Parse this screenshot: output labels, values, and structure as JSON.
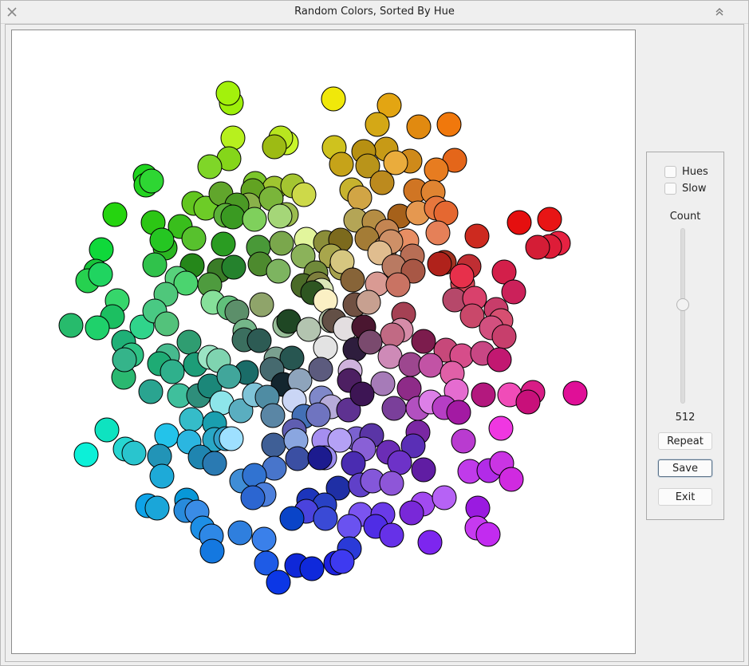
{
  "window": {
    "title": "Random Colors, Sorted By Hue"
  },
  "controls": {
    "hues_label": "Hues",
    "slow_label": "Slow",
    "hues_checked": false,
    "slow_checked": false,
    "count_label": "Count",
    "count_value": "512",
    "repeat_label": "Repeat",
    "save_label": "Save",
    "exit_label": "Exit"
  },
  "circles": [
    [
      "#9ef00a",
      289,
      128
    ],
    [
      "#a3f10c",
      285,
      116
    ],
    [
      "#f0e80a",
      417,
      123
    ],
    [
      "#e3a512",
      487,
      131
    ],
    [
      "#d4a816",
      472,
      155
    ],
    [
      "#e18a10",
      524,
      158
    ],
    [
      "#f0780c",
      562,
      155
    ],
    [
      "#b7f01e",
      291,
      172
    ],
    [
      "#c8f52b",
      358,
      178
    ],
    [
      "#b8e61f",
      351,
      172
    ],
    [
      "#9dbb14",
      343,
      183
    ],
    [
      "#cfc21e",
      418,
      184
    ],
    [
      "#c79a16",
      483,
      186
    ],
    [
      "#b79012",
      455,
      189
    ],
    [
      "#cf8a1a",
      513,
      201
    ],
    [
      "#e4661a",
      569,
      200
    ],
    [
      "#85d61a",
      286,
      198
    ],
    [
      "#7fd628",
      262,
      208
    ],
    [
      "#c6a319",
      427,
      205
    ],
    [
      "#b9941a",
      460,
      207
    ],
    [
      "#eaac3c",
      495,
      203
    ],
    [
      "#e77c20",
      546,
      212
    ],
    [
      "#1fd41f",
      181,
      220
    ],
    [
      "#22d31f",
      182,
      231
    ],
    [
      "#2ed633",
      189,
      226
    ],
    [
      "#7bc62b",
      319,
      229
    ],
    [
      "#9fc530",
      343,
      235
    ],
    [
      "#a4c531",
      366,
      232
    ],
    [
      "#cdd949",
      380,
      243
    ],
    [
      "#c7b32e",
      440,
      237
    ],
    [
      "#bc8a1e",
      478,
      228
    ],
    [
      "#d07523",
      520,
      238
    ],
    [
      "#e08431",
      542,
      240
    ],
    [
      "#25d40f",
      143,
      268
    ],
    [
      "#62c61f",
      242,
      254
    ],
    [
      "#6dcc27",
      257,
      260
    ],
    [
      "#61a62c",
      276,
      242
    ],
    [
      "#62a322",
      316,
      238
    ],
    [
      "#8ab14a",
      311,
      256
    ],
    [
      "#4b9a25",
      296,
      256
    ],
    [
      "#7ab53a",
      339,
      248
    ],
    [
      "#9bbc4e",
      358,
      268
    ],
    [
      "#d1a545",
      450,
      247
    ],
    [
      "#a6611a",
      500,
      270
    ],
    [
      "#e59850",
      523,
      266
    ],
    [
      "#e7773d",
      546,
      260
    ],
    [
      "#e56831",
      558,
      266
    ],
    [
      "#e50f0f",
      650,
      278
    ],
    [
      "#e81515",
      688,
      274
    ],
    [
      "#2cc614",
      191,
      278
    ],
    [
      "#39be1c",
      225,
      283
    ],
    [
      "#57c12d",
      242,
      298
    ],
    [
      "#5bb139",
      282,
      269
    ],
    [
      "#3a9a22",
      291,
      271
    ],
    [
      "#7fd05c",
      318,
      274
    ],
    [
      "#a5d678",
      350,
      270
    ],
    [
      "#b4a556",
      445,
      275
    ],
    [
      "#b58d43",
      468,
      277
    ],
    [
      "#c48552",
      484,
      289
    ],
    [
      "#e88e63",
      509,
      301
    ],
    [
      "#e58058",
      548,
      291
    ],
    [
      "#cd2a1f",
      597,
      295
    ],
    [
      "#e62242",
      699,
      304
    ],
    [
      "#de1c38",
      688,
      308
    ],
    [
      "#d41d36",
      673,
      309
    ],
    [
      "#0fd83a",
      126,
      312
    ],
    [
      "#17c43a",
      119,
      339
    ],
    [
      "#26d14f",
      109,
      351
    ],
    [
      "#2ab621",
      206,
      310
    ],
    [
      "#25c622",
      202,
      300
    ],
    [
      "#2a9c22",
      279,
      305
    ],
    [
      "#499938",
      323,
      309
    ],
    [
      "#7aa74c",
      352,
      304
    ],
    [
      "#e2f59c",
      383,
      299
    ],
    [
      "#8b8e39",
      407,
      303
    ],
    [
      "#7c6a1d",
      426,
      300
    ],
    [
      "#a47c36",
      459,
      298
    ],
    [
      "#c38759",
      482,
      310
    ],
    [
      "#ce9067",
      489,
      302
    ],
    [
      "#b86e55",
      516,
      320
    ],
    [
      "#a13322",
      556,
      328
    ],
    [
      "#b0221b",
      550,
      330
    ],
    [
      "#c02e33",
      587,
      333
    ],
    [
      "#d31f4a",
      631,
      340
    ],
    [
      "#20d460",
      125,
      343
    ],
    [
      "#30c24b",
      193,
      331
    ],
    [
      "#25871a",
      240,
      332
    ],
    [
      "#3a7c27",
      274,
      338
    ],
    [
      "#25822d",
      292,
      334
    ],
    [
      "#4d8a2e",
      325,
      330
    ],
    [
      "#8bb25a",
      379,
      320
    ],
    [
      "#a8a64c",
      414,
      320
    ],
    [
      "#a6a14d",
      427,
      335
    ],
    [
      "#d6c780",
      428,
      327
    ],
    [
      "#e0bd8f",
      475,
      316
    ],
    [
      "#b97a62",
      493,
      333
    ],
    [
      "#a85745",
      517,
      339
    ],
    [
      "#d64857",
      579,
      355
    ],
    [
      "#e7304b",
      578,
      345
    ],
    [
      "#cb215a",
      643,
      365
    ],
    [
      "#36d66b",
      146,
      376
    ],
    [
      "#1cbf61",
      140,
      396
    ],
    [
      "#27bb6c",
      88,
      407
    ],
    [
      "#1fd16b",
      121,
      410
    ],
    [
      "#58d27c",
      221,
      348
    ],
    [
      "#4bd46f",
      232,
      354
    ],
    [
      "#4fc77b",
      207,
      368
    ],
    [
      "#4e9b3e",
      262,
      356
    ],
    [
      "#7db460",
      348,
      339
    ],
    [
      "#708a3a",
      395,
      341
    ],
    [
      "#4b6b28",
      379,
      357
    ],
    [
      "#7e7e3d",
      398,
      355
    ],
    [
      "#876438",
      441,
      350
    ],
    [
      "#d99a93",
      472,
      355
    ],
    [
      "#c97363",
      498,
      356
    ],
    [
      "#b6486a",
      569,
      375
    ],
    [
      "#d9416c",
      594,
      373
    ],
    [
      "#c83d6a",
      621,
      387
    ],
    [
      "#d74f71",
      627,
      401
    ],
    [
      "#30d48b",
      177,
      409
    ],
    [
      "#49c983",
      193,
      389
    ],
    [
      "#53c27b",
      208,
      405
    ],
    [
      "#86e09a",
      266,
      378
    ],
    [
      "#61c07b",
      286,
      385
    ],
    [
      "#8fa46a",
      327,
      381
    ],
    [
      "#dbe7b8",
      402,
      363
    ],
    [
      "#2e5621",
      391,
      366
    ],
    [
      "#fbf0c4",
      407,
      376
    ],
    [
      "#715142",
      444,
      381
    ],
    [
      "#c7a090",
      461,
      378
    ],
    [
      "#a54154",
      505,
      393
    ],
    [
      "#c9486a",
      591,
      395
    ],
    [
      "#d2507f",
      615,
      410
    ],
    [
      "#c73f6c",
      631,
      421
    ],
    [
      "#1fb077",
      154,
      428
    ],
    [
      "#2ec284",
      164,
      444
    ],
    [
      "#2ab870",
      154,
      472
    ],
    [
      "#35b48a",
      155,
      450
    ],
    [
      "#47ba8e",
      209,
      445
    ],
    [
      "#2f9d71",
      236,
      428
    ],
    [
      "#5c8f6a",
      296,
      390
    ],
    [
      "#74b689",
      306,
      414
    ],
    [
      "#98be98",
      356,
      407
    ],
    [
      "#1f4724",
      361,
      402
    ],
    [
      "#b3c4b0",
      386,
      412
    ],
    [
      "#a8b79c",
      414,
      401
    ],
    [
      "#635046",
      418,
      401
    ],
    [
      "#e3dee0",
      432,
      411
    ],
    [
      "#4a1630",
      455,
      409
    ],
    [
      "#d68ca8",
      502,
      413
    ],
    [
      "#c16a84",
      491,
      419
    ],
    [
      "#7c1c4d",
      530,
      427
    ],
    [
      "#c7487a",
      558,
      438
    ],
    [
      "#d64d8a",
      578,
      445
    ],
    [
      "#c84784",
      604,
      442
    ],
    [
      "#1eab74",
      199,
      455
    ],
    [
      "#2fb08c",
      215,
      465
    ],
    [
      "#1d9d78",
      244,
      456
    ],
    [
      "#9be4c4",
      262,
      447
    ],
    [
      "#7fd4b0",
      273,
      451
    ],
    [
      "#3b6f5f",
      305,
      425
    ],
    [
      "#2d5b54",
      324,
      426
    ],
    [
      "#7aa08f",
      345,
      449
    ],
    [
      "#275651",
      365,
      448
    ],
    [
      "#e3e3e3",
      407,
      435
    ],
    [
      "#2e1d3d",
      444,
      437
    ],
    [
      "#7a4a6e",
      463,
      428
    ],
    [
      "#ce8ab7",
      488,
      446
    ],
    [
      "#9d478f",
      514,
      456
    ],
    [
      "#c253a5",
      539,
      457
    ],
    [
      "#e060a7",
      566,
      467
    ],
    [
      "#c21871",
      625,
      450
    ],
    [
      "#2aa490",
      188,
      490
    ],
    [
      "#3fbf9c",
      224,
      495
    ],
    [
      "#2e8e7b",
      248,
      495
    ],
    [
      "#1b8779",
      262,
      483
    ],
    [
      "#1a6c68",
      308,
      466
    ],
    [
      "#41a69b",
      286,
      471
    ],
    [
      "#466a6f",
      340,
      462
    ],
    [
      "#13262f",
      354,
      481
    ],
    [
      "#8ea4bc",
      375,
      476
    ],
    [
      "#5c5b7e",
      401,
      462
    ],
    [
      "#cfb2dc",
      438,
      464
    ],
    [
      "#4d1f62",
      437,
      476
    ],
    [
      "#a67bb8",
      479,
      480
    ],
    [
      "#8e2b88",
      512,
      486
    ],
    [
      "#e56cd0",
      571,
      489
    ],
    [
      "#b3187e",
      605,
      494
    ],
    [
      "#f04cb8",
      638,
      494
    ],
    [
      "#d81d86",
      667,
      491
    ],
    [
      "#e00f97",
      720,
      492
    ],
    [
      "#c8107a",
      661,
      503
    ],
    [
      "#8de5ea",
      277,
      504
    ],
    [
      "#5aaec0",
      301,
      514
    ],
    [
      "#7fc4d8",
      318,
      494
    ],
    [
      "#4f8ca3",
      334,
      497
    ],
    [
      "#cad6f5",
      368,
      501
    ],
    [
      "#7f88c9",
      402,
      498
    ],
    [
      "#b6abd9",
      414,
      509
    ],
    [
      "#5e3291",
      436,
      513
    ],
    [
      "#3d1554",
      453,
      493
    ],
    [
      "#7a3f9a",
      493,
      511
    ],
    [
      "#b250c0",
      523,
      511
    ],
    [
      "#dc7fe7",
      539,
      503
    ],
    [
      "#b63ec5",
      556,
      510
    ],
    [
      "#a31aa3",
      574,
      516
    ],
    [
      "#ef37e1",
      627,
      536
    ],
    [
      "#0ee3c0",
      133,
      538
    ],
    [
      "#0cf0d8",
      107,
      569
    ],
    [
      "#27d6d2",
      156,
      562
    ],
    [
      "#29c5ce",
      167,
      567
    ],
    [
      "#35bcc9",
      239,
      525
    ],
    [
      "#1a9faf",
      268,
      530
    ],
    [
      "#5a86a5",
      341,
      520
    ],
    [
      "#4370b6",
      380,
      521
    ],
    [
      "#6f74c0",
      398,
      519
    ],
    [
      "#5f5eb1",
      368,
      539
    ],
    [
      "#7b62d0",
      446,
      549
    ],
    [
      "#5a35a6",
      465,
      545
    ],
    [
      "#7a27a3",
      523,
      541
    ],
    [
      "#b93bd0",
      580,
      552
    ],
    [
      "#23c3ea",
      208,
      545
    ],
    [
      "#2bb6e0",
      236,
      553
    ],
    [
      "#29a7c6",
      268,
      550
    ],
    [
      "#33a0c9",
      282,
      549
    ],
    [
      "#9ee0ff",
      289,
      549
    ],
    [
      "#3f5f96",
      342,
      557
    ],
    [
      "#8aa6e0",
      370,
      551
    ],
    [
      "#a58ef0",
      405,
      551
    ],
    [
      "#b4a1f5",
      425,
      551
    ],
    [
      "#8960d6",
      455,
      562
    ],
    [
      "#6b2db6",
      486,
      566
    ],
    [
      "#5a2fb6",
      517,
      558
    ],
    [
      "#2294b7",
      199,
      571
    ],
    [
      "#1f85b0",
      250,
      572
    ],
    [
      "#2a7ab2",
      268,
      580
    ],
    [
      "#4875cb",
      343,
      586
    ],
    [
      "#3b4fa3",
      372,
      574
    ],
    [
      "#9b8cf0",
      406,
      573
    ],
    [
      "#1c1b8f",
      400,
      573
    ],
    [
      "#4a2cb1",
      442,
      580
    ],
    [
      "#6d32c8",
      500,
      579
    ],
    [
      "#601da3",
      530,
      588
    ],
    [
      "#c03bea",
      588,
      590
    ],
    [
      "#b22be8",
      612,
      589
    ],
    [
      "#ca35e3",
      628,
      580
    ],
    [
      "#d02ae0",
      640,
      600
    ],
    [
      "#1eaad8",
      202,
      596
    ],
    [
      "#3f8dd6",
      302,
      602
    ],
    [
      "#3173d1",
      318,
      595
    ],
    [
      "#4c7fdc",
      330,
      619
    ],
    [
      "#1f2fa5",
      423,
      611
    ],
    [
      "#6040c9",
      451,
      607
    ],
    [
      "#8457da",
      466,
      602
    ],
    [
      "#8e56d8",
      490,
      605
    ],
    [
      "#0898d8",
      233,
      626
    ],
    [
      "#0ea3e8",
      184,
      633
    ],
    [
      "#1aa6d9",
      196,
      636
    ],
    [
      "#288bdc",
      232,
      639
    ],
    [
      "#3a8ce6",
      246,
      641
    ],
    [
      "#2c66d1",
      316,
      623
    ],
    [
      "#1c35bb",
      386,
      626
    ],
    [
      "#2841c4",
      406,
      632
    ],
    [
      "#4a43dd",
      383,
      640
    ],
    [
      "#7b54f0",
      451,
      644
    ],
    [
      "#6a3be8",
      479,
      644
    ],
    [
      "#a24af0",
      529,
      631
    ],
    [
      "#b662f5",
      556,
      623
    ],
    [
      "#9a1be0",
      598,
      636
    ],
    [
      "#0a44c8",
      365,
      649
    ],
    [
      "#3a4ad6",
      407,
      649
    ],
    [
      "#6a52f0",
      437,
      659
    ],
    [
      "#4f2de5",
      470,
      659
    ],
    [
      "#7928d8",
      515,
      642
    ],
    [
      "#c63af0",
      597,
      661
    ],
    [
      "#c22bf0",
      611,
      669
    ],
    [
      "#1d8fe6",
      253,
      661
    ],
    [
      "#2e88e6",
      264,
      671
    ],
    [
      "#2f7fde",
      300,
      667
    ],
    [
      "#3a80ea",
      330,
      675
    ],
    [
      "#2a3ad8",
      437,
      687
    ],
    [
      "#6631e8",
      490,
      670
    ],
    [
      "#7d26ef",
      538,
      679
    ],
    [
      "#1478e0",
      265,
      690
    ],
    [
      "#1e5be6",
      333,
      705
    ],
    [
      "#0f28d8",
      371,
      708
    ],
    [
      "#0f29db",
      390,
      712
    ],
    [
      "#1d22e0",
      420,
      705
    ],
    [
      "#3e3af0",
      428,
      703
    ],
    [
      "#0c37e6",
      348,
      729
    ]
  ]
}
